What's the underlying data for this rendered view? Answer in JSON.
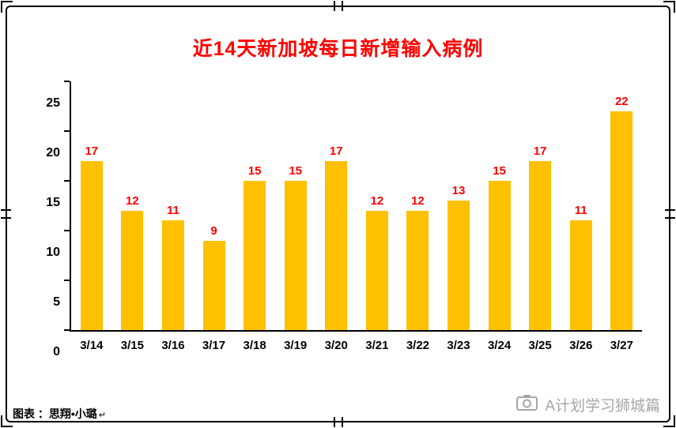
{
  "chart_data": {
    "type": "bar",
    "title": "近14天新加坡每日新增输入病例",
    "categories": [
      "3/14",
      "3/15",
      "3/16",
      "3/17",
      "3/18",
      "3/19",
      "3/20",
      "3/21",
      "3/22",
      "3/23",
      "3/24",
      "3/25",
      "3/26",
      "3/27"
    ],
    "values": [
      17,
      12,
      11,
      9,
      15,
      15,
      17,
      12,
      12,
      13,
      15,
      17,
      11,
      22
    ],
    "xlabel": "",
    "ylabel": "",
    "ylim": [
      0,
      25
    ],
    "yticks": [
      0,
      5,
      10,
      15,
      20,
      25
    ],
    "grid": false,
    "legend": "none",
    "bar_color": "#FFC000",
    "value_label_color": "#FF0000",
    "title_color": "#FF0000",
    "axis_color": "#000000"
  },
  "footer": {
    "caption": "图表 ：思翔•小璐",
    "caption_mark": "↵"
  },
  "watermark": {
    "icon": "camera-icon",
    "text": "A计划学习狮城篇",
    "color": "#a6a6a6"
  }
}
